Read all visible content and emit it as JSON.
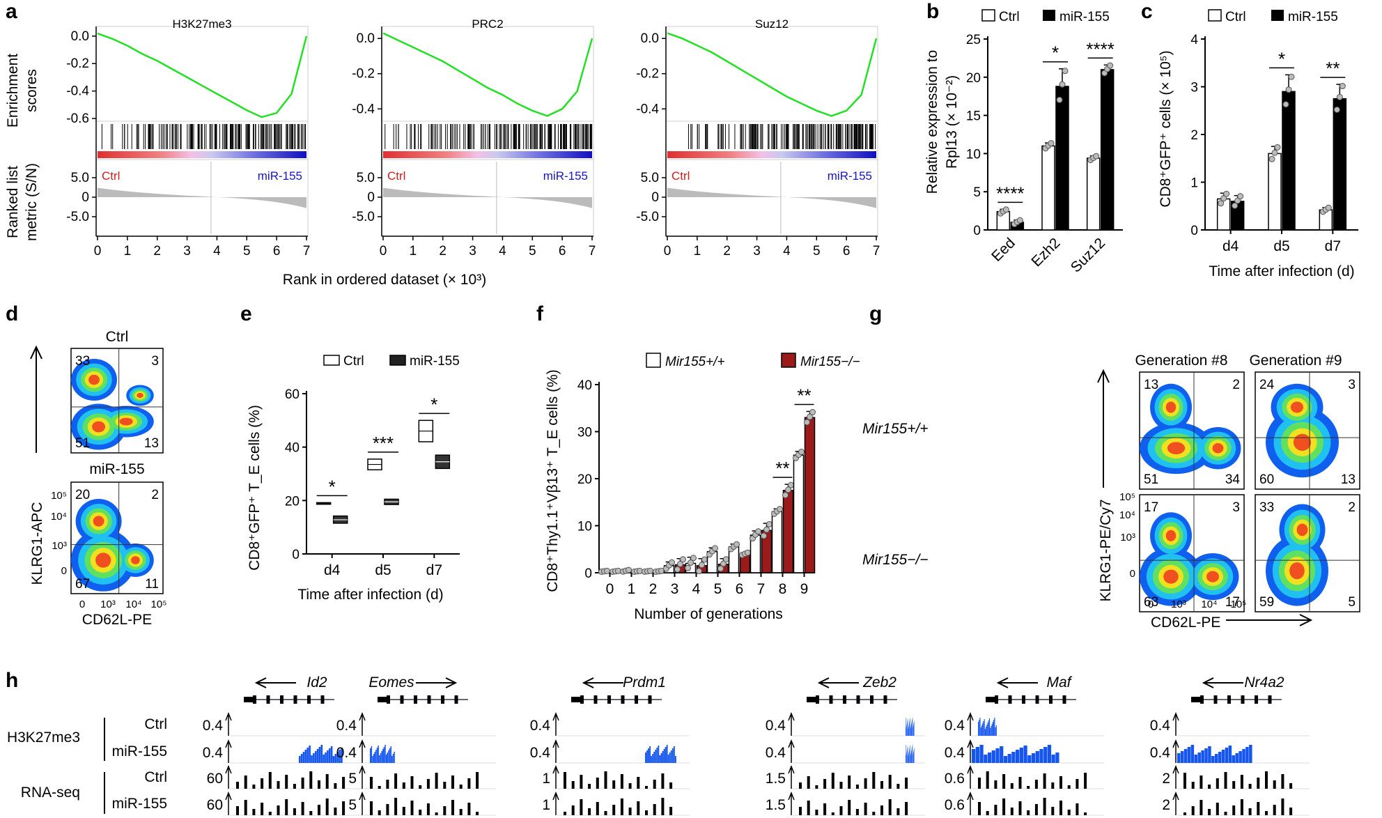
{
  "colors": {
    "ctrl": "#d01c1c",
    "mir": "#1515c8",
    "curve": "#22e022",
    "bar_mir": "#000000",
    "bar_red": "#9b1a1a",
    "blue_track": "#1456ee"
  },
  "panel_a": {
    "label": "a",
    "titles": [
      "H3K27me3",
      "PRC2",
      "Suz12"
    ],
    "ylabel_es": [
      "Enrichment",
      "scores"
    ],
    "ylabel_rank": [
      "Ranked list",
      "metric (S/N)"
    ],
    "ctrl_label": "Ctrl",
    "mir_label": "miR-155",
    "xlabel": "Rank in ordered dataset (× 10³)",
    "chart_data": [
      {
        "type": "line",
        "title": "H3K27me3",
        "x": [
          0,
          0.5,
          1,
          1.5,
          2,
          2.5,
          3,
          3.5,
          4,
          4.5,
          5,
          5.5,
          6,
          6.5,
          7
        ],
        "y": [
          0.02,
          -0.02,
          -0.07,
          -0.13,
          -0.18,
          -0.24,
          -0.3,
          -0.36,
          -0.42,
          -0.48,
          -0.54,
          -0.59,
          -0.56,
          -0.42,
          0.0
        ],
        "yticks": [
          "0.0",
          "-0.2",
          "-0.4",
          "-0.6"
        ],
        "ylim": [
          -0.62,
          0.06
        ],
        "xticks": [
          "0",
          "1",
          "2",
          "3",
          "4",
          "5",
          "6",
          "7"
        ]
      },
      {
        "type": "line",
        "title": "PRC2",
        "x": [
          0,
          0.5,
          1,
          1.5,
          2,
          2.5,
          3,
          3.5,
          4,
          4.5,
          5,
          5.5,
          6,
          6.5,
          7
        ],
        "y": [
          0.03,
          -0.01,
          -0.05,
          -0.09,
          -0.13,
          -0.18,
          -0.23,
          -0.28,
          -0.32,
          -0.37,
          -0.41,
          -0.44,
          -0.4,
          -0.3,
          0.0
        ],
        "yticks": [
          "0.0",
          "-0.2",
          "-0.4"
        ],
        "ylim": [
          -0.47,
          0.06
        ],
        "xticks": [
          "0",
          "1",
          "2",
          "3",
          "4",
          "5",
          "6",
          "7"
        ]
      },
      {
        "type": "line",
        "title": "Suz12",
        "x": [
          0,
          0.5,
          1,
          1.5,
          2,
          2.5,
          3,
          3.5,
          4,
          4.5,
          5,
          5.5,
          6,
          6.5,
          7
        ],
        "y": [
          0.03,
          0.0,
          -0.04,
          -0.08,
          -0.13,
          -0.18,
          -0.23,
          -0.28,
          -0.33,
          -0.37,
          -0.41,
          -0.44,
          -0.41,
          -0.32,
          0.0
        ],
        "yticks": [
          "0.0",
          "-0.2",
          "-0.4"
        ],
        "ylim": [
          -0.47,
          0.06
        ],
        "xticks": [
          "0",
          "1",
          "2",
          "3",
          "4",
          "5",
          "6",
          "7"
        ]
      }
    ],
    "rank_yticks": [
      "5.0",
      "0",
      "-5.0"
    ]
  },
  "panel_b": {
    "label": "b",
    "legend": [
      "Ctrl",
      "miR-155"
    ],
    "ylabel1": "Relative expression to",
    "ylabel2": "Rpl13 (× 10⁻²)",
    "chart_data": {
      "type": "bar",
      "categories": [
        "Eed",
        "Ezh2",
        "Suz12"
      ],
      "series": [
        {
          "name": "Ctrl",
          "values": [
            2.4,
            11.0,
            9.4
          ]
        },
        {
          "name": "miR-155",
          "values": [
            1.0,
            18.8,
            21.0
          ]
        }
      ],
      "errors": [
        [
          0.3,
          0.4,
          0.3
        ],
        [
          0.3,
          2.3,
          0.6
        ]
      ],
      "ylim": [
        0,
        25
      ],
      "yticks": [
        "0",
        "5",
        "10",
        "15",
        "20",
        "25"
      ],
      "sig": [
        "****",
        "*",
        "****"
      ]
    }
  },
  "panel_c": {
    "label": "c",
    "legend": [
      "Ctrl",
      "miR-155"
    ],
    "ylabel": "CD8⁺GFP⁺ cells (× 10⁵)",
    "xlabel": "Time after infection (d)",
    "chart_data": {
      "type": "bar",
      "categories": [
        "d4",
        "d5",
        "d7"
      ],
      "series": [
        {
          "name": "Ctrl",
          "values": [
            0.65,
            1.6,
            0.42
          ]
        },
        {
          "name": "miR-155",
          "values": [
            0.6,
            2.9,
            2.75
          ]
        }
      ],
      "errors": [
        [
          0.12,
          0.15,
          0.05
        ],
        [
          0.12,
          0.35,
          0.3
        ]
      ],
      "ylim": [
        0,
        4
      ],
      "yticks": [
        "0",
        "1",
        "2",
        "3",
        "4"
      ],
      "sig": [
        "",
        "*",
        "**"
      ]
    }
  },
  "panel_d": {
    "label": "d",
    "titles": [
      "Ctrl",
      "miR-155"
    ],
    "quadrants": [
      [
        "33",
        "3",
        "51",
        "13"
      ],
      [
        "20",
        "2",
        "67",
        "11"
      ]
    ],
    "ylabel": "KLRG1-APC",
    "xlabel": "CD62L-PE",
    "yticks": [
      "10⁵",
      "10⁴",
      "10³",
      "0"
    ],
    "xticks": [
      "0",
      "10³",
      "10⁴",
      "10⁵"
    ]
  },
  "panel_e": {
    "label": "e",
    "legend": [
      "Ctrl",
      "miR-155"
    ],
    "ylabel": "CD8⁺GFP⁺ T_E cells (%)",
    "xlabel": "Time after infection (d)",
    "chart_data": {
      "type": "box",
      "categories": [
        "d4",
        "d5",
        "d7"
      ],
      "series": [
        {
          "name": "Ctrl",
          "low": [
            18.6,
            31.5,
            42.0
          ],
          "mid": [
            18.9,
            33.5,
            46.0
          ],
          "high": [
            19.2,
            35.5,
            50.0
          ]
        },
        {
          "name": "miR-155",
          "low": [
            11.5,
            18.5,
            32.0
          ],
          "mid": [
            12.8,
            19.5,
            34.5
          ],
          "high": [
            14.2,
            20.5,
            37.0
          ]
        }
      ],
      "ylim": [
        0,
        60
      ],
      "yticks": [
        "0",
        "20",
        "40",
        "60"
      ],
      "sig": [
        "*",
        "***",
        "*"
      ]
    }
  },
  "panel_f": {
    "label": "f",
    "legend": [
      "Mir155+/+",
      "Mir155−/−"
    ],
    "ylabel": "CD8⁺Thy1.1⁺Vβ13⁺ T_E cells (%)",
    "xlabel": "Number of generations",
    "chart_data": {
      "type": "bar",
      "categories": [
        "0",
        "1",
        "2",
        "3",
        "4",
        "5",
        "6",
        "7",
        "8",
        "9"
      ],
      "series": [
        {
          "name": "Mir155+/+",
          "values": [
            0.3,
            0.4,
            0.3,
            1.5,
            2.0,
            4.5,
            5.5,
            8.0,
            13.0,
            25.0
          ]
        },
        {
          "name": "Mir155−/−",
          "values": [
            0.3,
            0.3,
            0.3,
            1.7,
            1.5,
            1.8,
            4.0,
            9.0,
            17.5,
            33.0
          ]
        }
      ],
      "errors": [
        [
          0.1,
          0.2,
          0.1,
          0.8,
          1.3,
          0.8,
          0.6,
          0.9,
          0.6,
          0.8
        ],
        [
          0.1,
          0.1,
          0.1,
          1.3,
          1.5,
          1.2,
          0.3,
          1.5,
          1.3,
          1.3
        ]
      ],
      "ylim": [
        0,
        40
      ],
      "yticks": [
        "0",
        "10",
        "20",
        "30",
        "40"
      ],
      "sig": [
        "",
        "",
        "",
        "",
        "",
        "",
        "",
        "",
        "**",
        "**"
      ]
    }
  },
  "panel_g": {
    "label": "g",
    "col_titles": [
      "Generation #8",
      "Generation #9"
    ],
    "row_labels": [
      "Mir155+/+",
      "Mir155−/−"
    ],
    "quadrants": [
      [
        "13",
        "2",
        "51",
        "34"
      ],
      [
        "24",
        "3",
        "60",
        "13"
      ],
      [
        "17",
        "3",
        "63",
        "17"
      ],
      [
        "33",
        "2",
        "59",
        "5"
      ]
    ],
    "ylabel": "KLRG1-PE/Cy7",
    "xlabel": "CD62L-PE",
    "yticks": [
      "10⁵",
      "10⁴",
      "10³",
      "0"
    ],
    "xticks": [
      "0",
      "10³",
      "10⁴",
      "10⁵"
    ]
  },
  "panel_h": {
    "label": "h",
    "group_labels": [
      "H3K27me3",
      "RNA-seq"
    ],
    "row_labels": [
      "Ctrl",
      "miR-155",
      "Ctrl",
      "miR-155"
    ],
    "genes": [
      {
        "name": "Id2",
        "dir": "left",
        "scales": [
          "0.4",
          "0.4",
          "60",
          "60"
        ]
      },
      {
        "name": "Eomes",
        "dir": "right",
        "scales": [
          "0.4",
          "0.4",
          "5",
          "5"
        ]
      },
      {
        "name": "Prdm1",
        "dir": "left",
        "scales": [
          "0.4",
          "0.4",
          "1",
          "1"
        ]
      },
      {
        "name": "Zeb2",
        "dir": "left",
        "scales": [
          "0.4",
          "0.4",
          "1.5",
          "1.5"
        ]
      },
      {
        "name": "Maf",
        "dir": "left",
        "scales": [
          "0.4",
          "0.4",
          "0.6",
          "0.6"
        ]
      },
      {
        "name": "Nr4a2",
        "dir": "left",
        "scales": [
          "0.4",
          "0.4",
          "2",
          "2"
        ]
      }
    ]
  }
}
